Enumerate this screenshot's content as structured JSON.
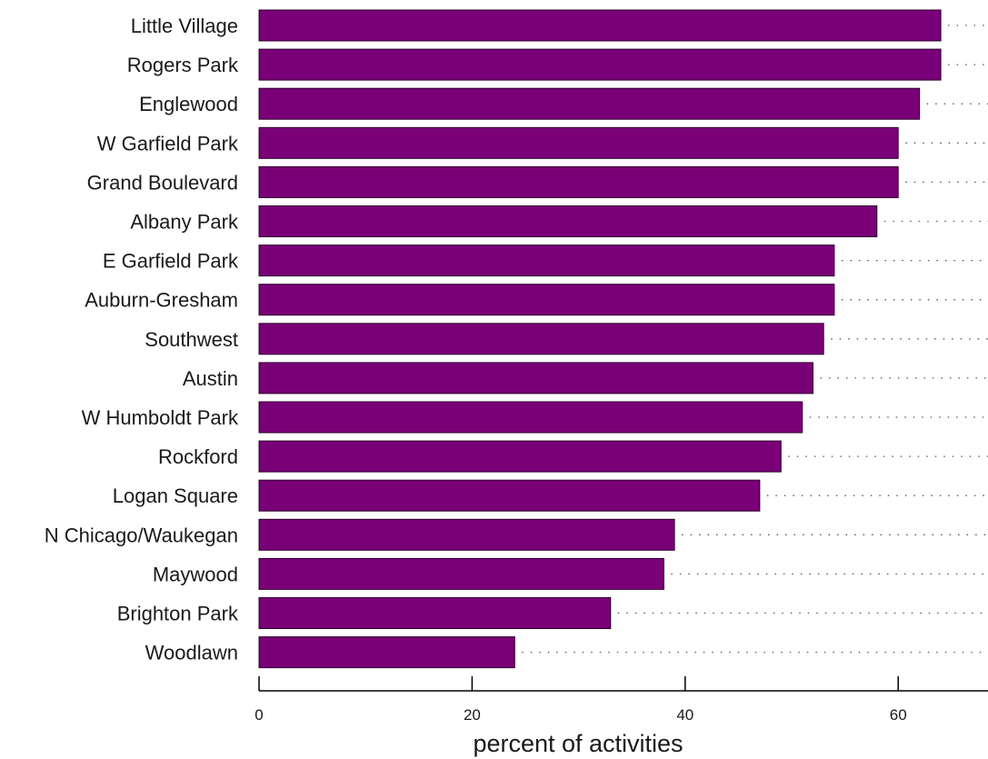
{
  "chart_data": {
    "type": "bar",
    "orientation": "horizontal",
    "categories": [
      "Little Village",
      "Rogers Park",
      "Englewood",
      "W Garfield Park",
      "Grand Boulevard",
      "Albany Park",
      "E Garfield Park",
      "Auburn-Gresham",
      "Southwest",
      "Austin",
      "W Humboldt Park",
      "Rockford",
      "Logan Square",
      "N Chicago/Waukegan",
      "Maywood",
      "Brighton Park",
      "Woodlawn"
    ],
    "values": [
      64,
      64,
      62,
      60,
      60,
      58,
      54,
      54,
      53,
      52,
      51,
      49,
      47,
      39,
      38,
      33,
      24
    ],
    "xlabel": "percent of activities",
    "ylabel": "",
    "xlim": [
      0,
      68
    ],
    "xticks": [
      "0",
      "20",
      "40",
      "60"
    ],
    "bar_color": "#7a0078",
    "bar_edge_color": "#2a002a",
    "guide_lines": "dotted"
  }
}
